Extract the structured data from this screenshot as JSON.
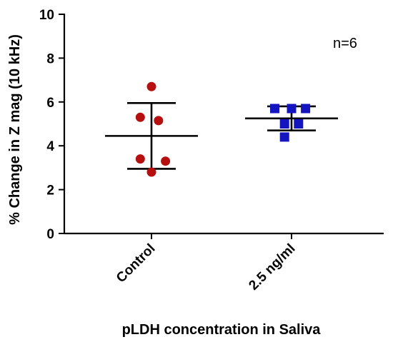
{
  "chart_data": {
    "type": "scatter",
    "ylabel": "% Change in Z mag (10 kHz)",
    "xlabel": "pLDH concentration in Saliva",
    "ylim": [
      0,
      10
    ],
    "yticks": [
      0,
      2,
      4,
      6,
      8,
      10
    ],
    "categories": [
      "Control",
      "2.5 ng/ml"
    ],
    "annotation": "n=6",
    "grid": false,
    "series": [
      {
        "category": "Control",
        "marker": "circle",
        "color": "#b50f0f",
        "points": [
          {
            "offset": 0,
            "y": 6.7
          },
          {
            "offset": -0.08,
            "y": 5.3
          },
          {
            "offset": 0.05,
            "y": 5.15
          },
          {
            "offset": -0.08,
            "y": 3.4
          },
          {
            "offset": 0.1,
            "y": 3.3
          },
          {
            "offset": 0,
            "y": 2.8
          }
        ],
        "mean": 4.45,
        "sd_low": 2.95,
        "sd_high": 5.95
      },
      {
        "category": "2.5 ng/ml",
        "marker": "square",
        "color": "#1515c0",
        "points": [
          {
            "offset": -0.12,
            "y": 5.7
          },
          {
            "offset": 0.0,
            "y": 5.7
          },
          {
            "offset": 0.1,
            "y": 5.7
          },
          {
            "offset": -0.05,
            "y": 5.0
          },
          {
            "offset": 0.05,
            "y": 5.0
          },
          {
            "offset": -0.05,
            "y": 4.4
          }
        ],
        "mean": 5.25,
        "sd_low": 4.7,
        "sd_high": 5.8
      }
    ]
  }
}
